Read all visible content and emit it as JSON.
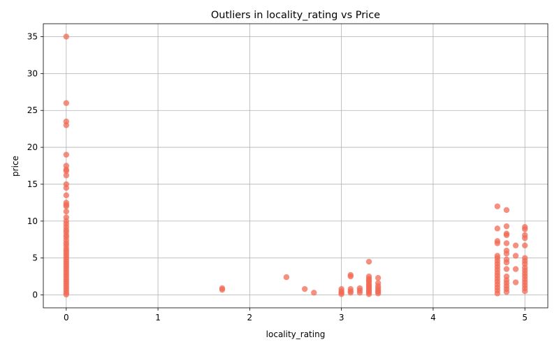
{
  "chart_data": {
    "type": "scatter",
    "title": "Outliers in locality_rating vs Price",
    "xlabel": "locality_rating",
    "ylabel": "price",
    "xlim": [
      -0.25,
      5.25
    ],
    "ylim": [
      -1.75,
      36.75
    ],
    "xticks": [
      "0",
      "1",
      "2",
      "3",
      "4",
      "5"
    ],
    "yticks": [
      "0",
      "5",
      "10",
      "15",
      "20",
      "25",
      "30",
      "35"
    ],
    "grid": true,
    "point_color": "#f26a54",
    "point_opacity": 0.75,
    "series": [
      {
        "points": [
          [
            0,
            35.0
          ],
          [
            0,
            26.0
          ],
          [
            0,
            23.5
          ],
          [
            0,
            23.0
          ],
          [
            0,
            19.0
          ],
          [
            0,
            17.5
          ],
          [
            0,
            17.0
          ],
          [
            0,
            16.8
          ],
          [
            0,
            16.2
          ],
          [
            0,
            15.0
          ],
          [
            0,
            14.5
          ],
          [
            0,
            13.5
          ],
          [
            0,
            12.5
          ],
          [
            0,
            12.2
          ],
          [
            0,
            12.0
          ],
          [
            0,
            11.3
          ],
          [
            0,
            10.5
          ],
          [
            0,
            10.0
          ],
          [
            0,
            9.6
          ],
          [
            0,
            9.2
          ],
          [
            0,
            8.8
          ],
          [
            0,
            8.5
          ],
          [
            0,
            8.1
          ],
          [
            0,
            7.8
          ],
          [
            0,
            7.4
          ],
          [
            0,
            7.0
          ],
          [
            0,
            6.7
          ],
          [
            0,
            6.3
          ],
          [
            0,
            6.0
          ],
          [
            0,
            5.7
          ],
          [
            0,
            5.4
          ],
          [
            0,
            5.1
          ],
          [
            0,
            4.8
          ],
          [
            0,
            4.5
          ],
          [
            0,
            4.2
          ],
          [
            0,
            3.9
          ],
          [
            0,
            3.6
          ],
          [
            0,
            3.3
          ],
          [
            0,
            3.0
          ],
          [
            0,
            2.7
          ],
          [
            0,
            2.4
          ],
          [
            0,
            2.1
          ],
          [
            0,
            1.8
          ],
          [
            0,
            1.5
          ],
          [
            0,
            1.2
          ],
          [
            0,
            0.9
          ],
          [
            0,
            0.6
          ],
          [
            0,
            0.3
          ],
          [
            0,
            0.05
          ],
          [
            1.7,
            0.9
          ],
          [
            1.7,
            0.7
          ],
          [
            2.4,
            2.4
          ],
          [
            2.6,
            0.8
          ],
          [
            2.7,
            0.3
          ],
          [
            3.0,
            0.8
          ],
          [
            3.0,
            0.5
          ],
          [
            3.0,
            0.3
          ],
          [
            3.0,
            0.1
          ],
          [
            3.1,
            2.7
          ],
          [
            3.1,
            2.5
          ],
          [
            3.1,
            0.8
          ],
          [
            3.1,
            0.5
          ],
          [
            3.1,
            0.3
          ],
          [
            3.2,
            0.9
          ],
          [
            3.2,
            0.6
          ],
          [
            3.2,
            0.3
          ],
          [
            3.3,
            4.5
          ],
          [
            3.3,
            2.5
          ],
          [
            3.3,
            2.2
          ],
          [
            3.3,
            2.0
          ],
          [
            3.3,
            1.8
          ],
          [
            3.3,
            1.5
          ],
          [
            3.3,
            1.3
          ],
          [
            3.3,
            1.1
          ],
          [
            3.3,
            0.9
          ],
          [
            3.3,
            0.7
          ],
          [
            3.3,
            0.5
          ],
          [
            3.3,
            0.3
          ],
          [
            3.3,
            0.1
          ],
          [
            3.4,
            2.3
          ],
          [
            3.4,
            1.6
          ],
          [
            3.4,
            1.2
          ],
          [
            3.4,
            0.9
          ],
          [
            3.4,
            0.6
          ],
          [
            3.4,
            0.4
          ],
          [
            3.4,
            0.2
          ],
          [
            4.7,
            12.0
          ],
          [
            4.7,
            9.0
          ],
          [
            4.7,
            7.3
          ],
          [
            4.7,
            7.0
          ],
          [
            4.7,
            5.3
          ],
          [
            4.7,
            5.0
          ],
          [
            4.7,
            4.6
          ],
          [
            4.7,
            4.2
          ],
          [
            4.7,
            3.8
          ],
          [
            4.7,
            3.4
          ],
          [
            4.7,
            3.0
          ],
          [
            4.7,
            2.6
          ],
          [
            4.7,
            2.2
          ],
          [
            4.7,
            1.8
          ],
          [
            4.7,
            1.4
          ],
          [
            4.7,
            1.0
          ],
          [
            4.7,
            0.6
          ],
          [
            4.7,
            0.2
          ],
          [
            4.8,
            11.5
          ],
          [
            4.8,
            9.3
          ],
          [
            4.8,
            8.3
          ],
          [
            4.8,
            8.1
          ],
          [
            4.8,
            7.0
          ],
          [
            4.8,
            6.0
          ],
          [
            4.8,
            5.6
          ],
          [
            4.8,
            4.8
          ],
          [
            4.8,
            4.4
          ],
          [
            4.8,
            3.5
          ],
          [
            4.8,
            2.5
          ],
          [
            4.8,
            2.0
          ],
          [
            4.8,
            1.6
          ],
          [
            4.8,
            1.2
          ],
          [
            4.8,
            0.8
          ],
          [
            4.8,
            0.4
          ],
          [
            4.9,
            6.7
          ],
          [
            4.9,
            5.3
          ],
          [
            4.9,
            3.5
          ],
          [
            4.9,
            1.7
          ],
          [
            5.0,
            9.2
          ],
          [
            5.0,
            8.9
          ],
          [
            5.0,
            8.1
          ],
          [
            5.0,
            7.7
          ],
          [
            5.0,
            6.7
          ],
          [
            5.0,
            5.0
          ],
          [
            5.0,
            4.6
          ],
          [
            5.0,
            4.2
          ],
          [
            5.0,
            3.7
          ],
          [
            5.0,
            3.3
          ],
          [
            5.0,
            2.9
          ],
          [
            5.0,
            2.5
          ],
          [
            5.0,
            2.1
          ],
          [
            5.0,
            1.7
          ],
          [
            5.0,
            1.3
          ],
          [
            5.0,
            0.9
          ],
          [
            5.0,
            0.5
          ]
        ]
      }
    ]
  }
}
